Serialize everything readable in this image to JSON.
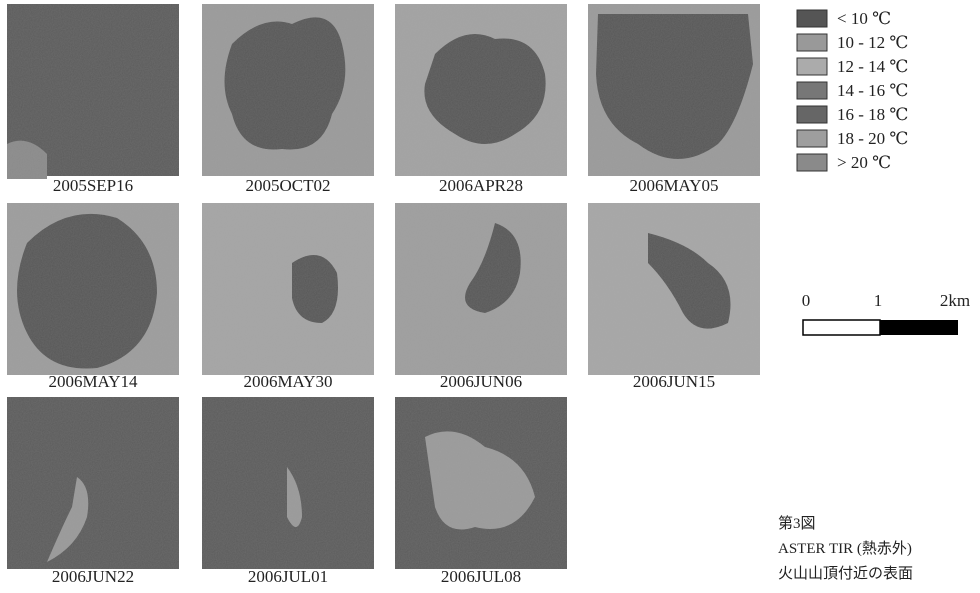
{
  "panels": [
    "2005SEP16",
    "2005OCT02",
    "2006APR28",
    "2006MAY05",
    "2006MAY14",
    "2006MAY30",
    "2006JUN06",
    "2006JUN15",
    "2006JUN22",
    "2006JUL01",
    "2006JUL08"
  ],
  "legend": [
    "< 10 ℃",
    "10 - 12 ℃",
    "12 - 14 ℃",
    "14 - 16 ℃",
    "16 - 18 ℃",
    "18 - 20 ℃",
    "> 20 ℃"
  ],
  "scale_bar": [
    "0",
    "1",
    "2km"
  ],
  "caption": [
    "第3図",
    "ASTER TIR (熱赤外)",
    "火山山頂付近の表面"
  ]
}
